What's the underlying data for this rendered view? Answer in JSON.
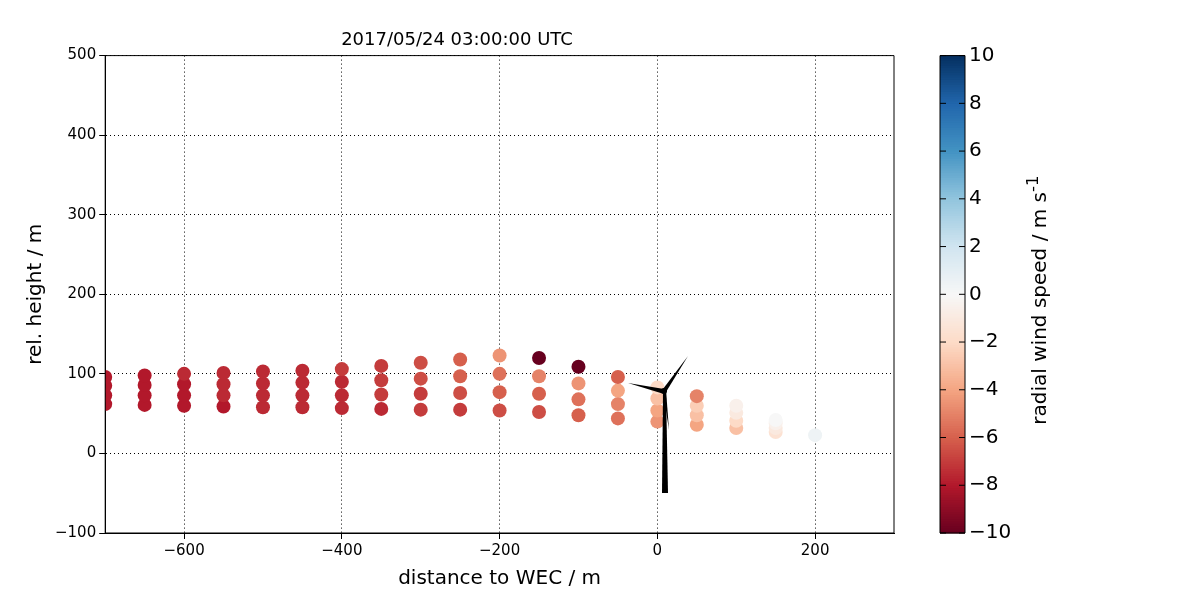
{
  "chart_data": {
    "type": "scatter",
    "title": "2017/05/24 03:00:00 UTC",
    "xlabel": "distance to WEC / m",
    "ylabel": "rel. height / m",
    "clabel": "radial wind speed / m s$^{-1}$",
    "xlim": [
      -700,
      300
    ],
    "xticks": [
      {
        "value": -600,
        "label": "−600"
      },
      {
        "value": -400,
        "label": "−400"
      },
      {
        "value": -200,
        "label": "−200"
      },
      0,
      200
    ],
    "ylim": [
      -100,
      500
    ],
    "yticks": [
      {
        "value": -100,
        "label": "−100"
      },
      0,
      100,
      200,
      300,
      400,
      500
    ],
    "clim": [
      -10,
      10
    ],
    "cticks": [
      {
        "value": -10,
        "label": "−10"
      },
      {
        "value": -8,
        "label": "−8"
      },
      {
        "value": -6,
        "label": "−6"
      },
      {
        "value": -4,
        "label": "−4"
      },
      {
        "value": -2,
        "label": "−2"
      },
      0,
      2,
      4,
      6,
      8,
      10
    ],
    "grid": true,
    "legend": false,
    "marker": "circle",
    "x": [
      -700,
      -700,
      -700,
      -700,
      -650,
      -650,
      -650,
      -650,
      -600,
      -600,
      -600,
      -600,
      -550,
      -550,
      -550,
      -550,
      -500,
      -500,
      -500,
      -500,
      -450,
      -450,
      -450,
      -450,
      -400,
      -400,
      -400,
      -400,
      -350,
      -350,
      -350,
      -350,
      -300,
      -300,
      -300,
      -300,
      -250,
      -250,
      -250,
      -250,
      -200,
      -200,
      -200,
      -200,
      -150,
      -150,
      -150,
      -150,
      -100,
      -100,
      -100,
      -100,
      -50,
      -50,
      -50,
      -50,
      0,
      0,
      0,
      0,
      50,
      50,
      50,
      50,
      100,
      100,
      100,
      100,
      150,
      150,
      150,
      150,
      200
    ],
    "values": [
      62,
      73,
      85,
      96,
      61,
      73,
      86,
      98,
      60,
      73,
      87,
      100,
      59,
      73,
      87,
      101,
      58,
      73,
      88,
      103,
      58,
      73,
      89,
      104,
      57,
      73,
      90,
      106,
      56,
      74,
      92,
      110,
      55,
      75,
      94,
      114,
      55,
      76,
      97,
      118,
      54,
      77,
      100,
      123,
      52,
      75,
      97,
      120,
      48,
      68,
      88,
      109,
      44,
      62,
      79,
      96,
      40,
      54,
      69,
      83,
      36,
      48,
      60,
      72,
      32,
      41,
      51,
      60,
      27,
      32,
      38,
      42,
      23
    ],
    "cvalues": [
      -8,
      -8,
      -8,
      -8,
      -8,
      -8,
      -8,
      -8,
      -8,
      -8,
      -8,
      -7.5,
      -8,
      -7.5,
      -7.5,
      -7.5,
      -7.5,
      -7.5,
      -7.5,
      -7.5,
      -7.5,
      -7.5,
      -7.5,
      -7.5,
      -7.5,
      -7.5,
      -7.5,
      -7,
      -7.5,
      -7,
      -7,
      -7,
      -7,
      -7,
      -6.5,
      -6.5,
      -7,
      -6.5,
      -6,
      -6,
      -6.5,
      -6,
      -5.5,
      -4.5,
      -6.5,
      -6,
      -5,
      -10,
      -6,
      -5.5,
      -4.5,
      -10,
      -5.5,
      -5,
      -4,
      -6,
      -4.5,
      -4,
      -3,
      -2,
      -4,
      -3,
      -2.5,
      -5,
      -3,
      -2,
      -1,
      -0.5,
      -1.5,
      -1,
      -0.5,
      0,
      0.5
    ]
  }
}
